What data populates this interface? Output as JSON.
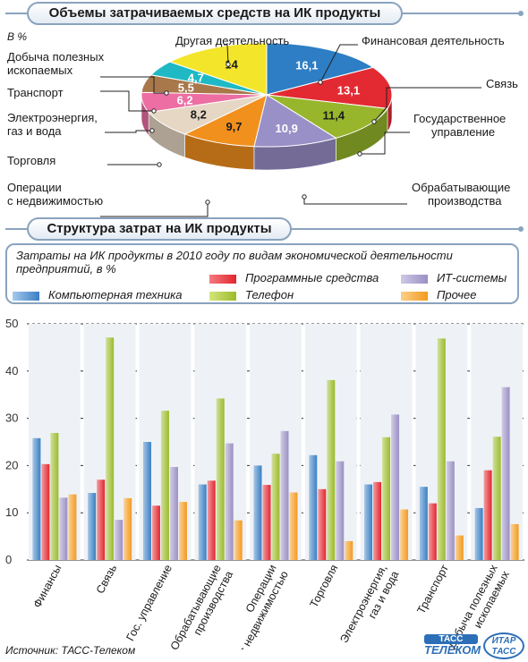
{
  "banner1": "Объемы затрачиваемых средств на ИК продукты",
  "banner2": "Структура затрат на ИК продукты",
  "pie_unit": "В %",
  "legend": {
    "title": "Затраты на ИК продукты в 2010 году по видам экономической деятельности предприятий, в %",
    "computer": "Компьютерная техника",
    "software": "Программные средства",
    "phone": "Телефон",
    "it": "ИТ-системы",
    "other": "Прочее"
  },
  "source": "Источник: ТАСС-Телеком",
  "logos": {
    "tass_top": "ТАСС",
    "tass_bottom": "ТЕЛЕКОМ",
    "itar_top": "ИТАР",
    "itar_bottom": "ТАСС"
  },
  "colors": {
    "computer": "#3a7fc4",
    "software": "#e3262f",
    "phone": "#9bbb2a",
    "it": "#9b8fc4",
    "other": "#f39a1e",
    "pie_fin": "#2d7ec4",
    "pie_svyaz": "#e32a32",
    "pie_gov": "#97b62c",
    "pie_proc": "#9a90c8",
    "pie_realty": "#f2901e",
    "pie_trade": "#e5d7c4",
    "pie_energy": "#ec6ea3",
    "pie_transport": "#a8774a",
    "pie_mining": "#1eb9c4",
    "pie_other": "#f3e52a"
  },
  "chart_data": [
    {
      "type": "pie",
      "title": "Объемы затрачиваемых средств на ИК продукты",
      "unit": "В %",
      "slices": [
        {
          "label": "Финансовая деятельность",
          "value": 16.1,
          "display": "16,1",
          "color_key": "pie_fin"
        },
        {
          "label": "Связь",
          "value": 13.1,
          "display": "13,1",
          "color_key": "pie_svyaz"
        },
        {
          "label": "Государственное управление",
          "value": 11.4,
          "display": "11,4",
          "color_key": "pie_gov"
        },
        {
          "label": "Обрабатывающие производства",
          "value": 10.9,
          "display": "10,9",
          "color_key": "pie_proc"
        },
        {
          "label": "Операции с недвижимостью",
          "value": 9.7,
          "display": "9,7",
          "color_key": "pie_realty"
        },
        {
          "label": "Торговля",
          "value": 8.2,
          "display": "8,2",
          "color_key": "pie_trade"
        },
        {
          "label": "Электроэнергия, газ и вода",
          "value": 6.2,
          "display": "6,2",
          "color_key": "pie_energy"
        },
        {
          "label": "Транспорт",
          "value": 5.5,
          "display": "5,5",
          "color_key": "pie_transport"
        },
        {
          "label": "Добыча полезных ископаемых",
          "value": 4.7,
          "display": "4,7",
          "color_key": "pie_mining"
        },
        {
          "label": "Другая деятельность",
          "value": 14,
          "display": "14",
          "color_key": "pie_other"
        }
      ]
    },
    {
      "type": "bar",
      "title": "Структура затрат на ИК продукты",
      "subtitle": "Затраты на ИК продукты в 2010 году по видам экономической деятельности предприятий, в %",
      "categories": [
        "Финансы",
        "Связь",
        "Гос. управление",
        "Обрабатывающие производства",
        "Операции с недвижимостью",
        "Торговля",
        "Электроэнергия, газ и вода",
        "Транспорт",
        "Добыча полезных ископаемых"
      ],
      "category_lines": [
        [
          "Финансы"
        ],
        [
          "Связь"
        ],
        [
          "Гос. управление"
        ],
        [
          "Обрабатывающие",
          "производства"
        ],
        [
          "Операции",
          "с недвижимостью"
        ],
        [
          "Торговля"
        ],
        [
          "Электроэнергия,",
          "газ и вода"
        ],
        [
          "Транспорт"
        ],
        [
          "Добыча полезных",
          "ископаемых"
        ]
      ],
      "series": [
        {
          "name": "Компьютерная техника",
          "color_key": "computer",
          "values": [
            25.8,
            14.2,
            25.0,
            16.0,
            20.0,
            22.2,
            16.0,
            15.5,
            11.0
          ]
        },
        {
          "name": "Программные средства",
          "color_key": "software",
          "values": [
            20.3,
            17.0,
            11.5,
            16.8,
            15.9,
            15.0,
            16.5,
            12.0,
            19.0
          ]
        },
        {
          "name": "Телефон",
          "color_key": "phone",
          "values": [
            26.9,
            47.1,
            31.6,
            34.2,
            22.5,
            38.1,
            26.0,
            46.9,
            26.1
          ]
        },
        {
          "name": "ИТ-системы",
          "color_key": "it",
          "values": [
            13.2,
            8.5,
            19.7,
            24.7,
            27.3,
            20.9,
            30.8,
            20.9,
            36.6
          ]
        },
        {
          "name": "Прочее",
          "color_key": "other",
          "values": [
            13.9,
            13.1,
            12.3,
            8.4,
            14.3,
            4.0,
            10.7,
            5.2,
            7.6
          ]
        }
      ],
      "yticks": [
        "0",
        "10",
        "20",
        "30",
        "40",
        "50"
      ],
      "ylim": [
        0,
        50
      ],
      "grid": true
    }
  ]
}
